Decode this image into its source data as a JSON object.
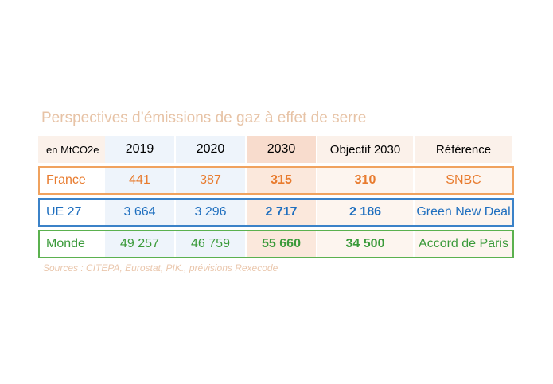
{
  "chart_data": {
    "type": "table",
    "title": "Perspectives d’émissions de gaz à effet de serre",
    "unit_label": "en MtCO2e",
    "columns": [
      "2019",
      "2020",
      "2030",
      "Objectif 2030",
      "Référence"
    ],
    "rows": [
      {
        "label": "France",
        "values": [
          "441",
          "387",
          "315",
          "310"
        ],
        "reference": "SNBC",
        "color": "#e87b2e"
      },
      {
        "label": "UE 27",
        "values": [
          "3 664",
          "3 296",
          "2 717",
          "2 186"
        ],
        "reference": "Green New Deal",
        "color": "#1f6fbf"
      },
      {
        "label": "Monde",
        "values": [
          "49 257",
          "46 759",
          "55 660",
          "34 500"
        ],
        "reference": "Accord de Paris",
        "color": "#3a9a3a"
      }
    ],
    "source": "Sources : CITEPA, Eurostat, PIK., prévisions Rexecode"
  }
}
